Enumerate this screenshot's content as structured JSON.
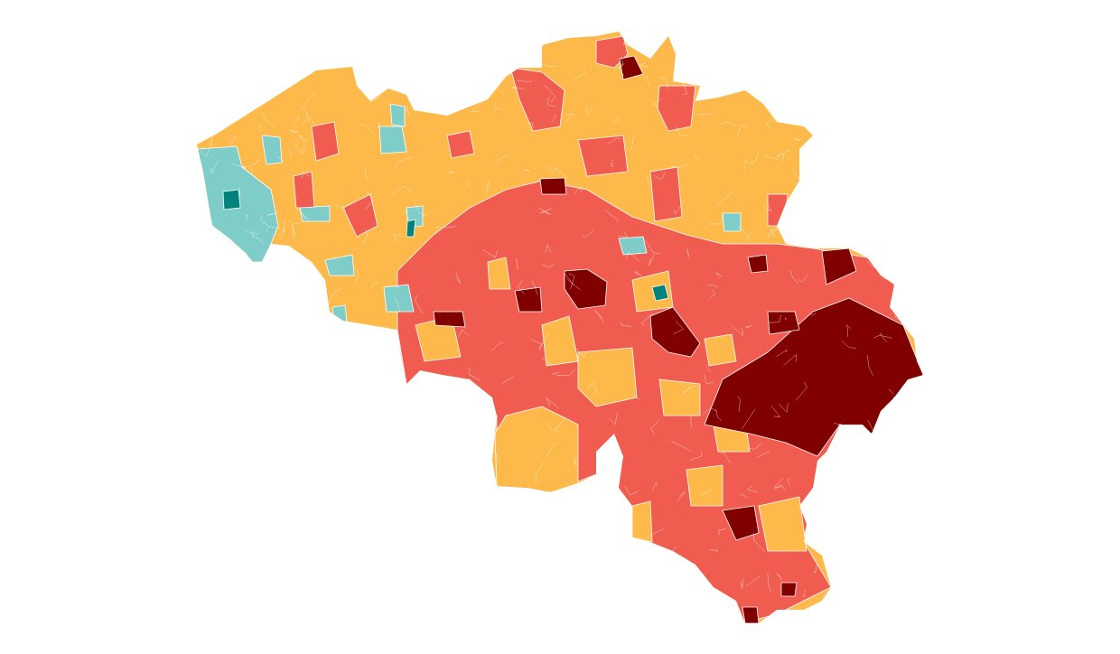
{
  "map": {
    "type": "choropleth",
    "classes": [
      {
        "key": "lightteal",
        "color": "#7fcdc8"
      },
      {
        "key": "darkteal",
        "color": "#00837c"
      },
      {
        "key": "yellow",
        "color": "#fdb94a"
      },
      {
        "key": "red",
        "color": "#f15c51"
      },
      {
        "key": "darkred",
        "color": "#800000"
      }
    ]
  }
}
